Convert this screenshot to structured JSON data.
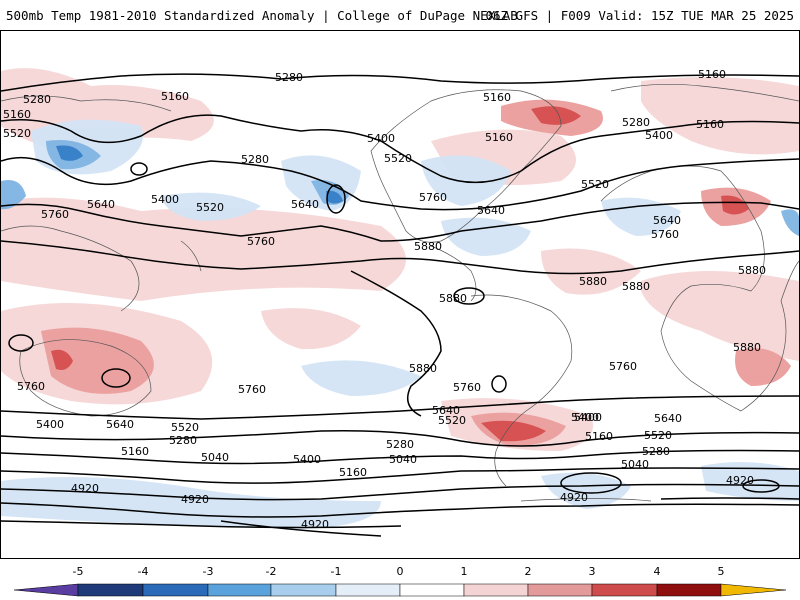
{
  "header": {
    "title_left": "500mb Temp 1981-2010 Standardized Anomaly | College of DuPage NEXLAB",
    "title_right": "06Z GFS | F009 Valid: 15Z TUE MAR 25 2025"
  },
  "map": {
    "contour_labels": [
      {
        "text": "5280",
        "kind": "height"
      },
      {
        "text": "5160",
        "kind": "height"
      },
      {
        "text": "5280",
        "kind": "height"
      },
      {
        "text": "5520",
        "kind": "height"
      },
      {
        "text": "5160",
        "kind": "height"
      },
      {
        "text": "5400",
        "kind": "height"
      },
      {
        "text": "5520",
        "kind": "height"
      },
      {
        "text": "5280",
        "kind": "height"
      },
      {
        "text": "5400",
        "kind": "height"
      },
      {
        "text": "5520",
        "kind": "height"
      },
      {
        "text": "5640",
        "kind": "height"
      },
      {
        "text": "5640",
        "kind": "height"
      },
      {
        "text": "5760",
        "kind": "height"
      },
      {
        "text": "5760",
        "kind": "height"
      },
      {
        "text": "5760",
        "kind": "height"
      },
      {
        "text": "5640",
        "kind": "height"
      },
      {
        "text": "5880",
        "kind": "height"
      },
      {
        "text": "5880",
        "kind": "height"
      },
      {
        "text": "5160",
        "kind": "height"
      },
      {
        "text": "5160",
        "kind": "height"
      },
      {
        "text": "5160",
        "kind": "height"
      },
      {
        "text": "5280",
        "kind": "height"
      },
      {
        "text": "5400",
        "kind": "height"
      },
      {
        "text": "5160",
        "kind": "height"
      },
      {
        "text": "5520",
        "kind": "height"
      },
      {
        "text": "5640",
        "kind": "height"
      },
      {
        "text": "5760",
        "kind": "height"
      },
      {
        "text": "5880",
        "kind": "height"
      },
      {
        "text": "5880",
        "kind": "height"
      },
      {
        "text": "5880",
        "kind": "height"
      },
      {
        "text": "5880",
        "kind": "height"
      },
      {
        "text": "5880",
        "kind": "height"
      },
      {
        "text": "5760",
        "kind": "height"
      },
      {
        "text": "5760",
        "kind": "height"
      },
      {
        "text": "5760",
        "kind": "height"
      },
      {
        "text": "5760",
        "kind": "height"
      },
      {
        "text": "5640",
        "kind": "height"
      },
      {
        "text": "5520",
        "kind": "height"
      },
      {
        "text": "5400",
        "kind": "height"
      },
      {
        "text": "5640",
        "kind": "height"
      },
      {
        "text": "5520",
        "kind": "height"
      },
      {
        "text": "5400",
        "kind": "height"
      },
      {
        "text": "5160",
        "kind": "height"
      },
      {
        "text": "5280",
        "kind": "height"
      },
      {
        "text": "5040",
        "kind": "height"
      },
      {
        "text": "5640",
        "kind": "height"
      },
      {
        "text": "5520",
        "kind": "height"
      },
      {
        "text": "5400",
        "kind": "height"
      },
      {
        "text": "5280",
        "kind": "height"
      },
      {
        "text": "5160",
        "kind": "height"
      },
      {
        "text": "5040",
        "kind": "height"
      },
      {
        "text": "4920",
        "kind": "height"
      },
      {
        "text": "4920",
        "kind": "height"
      },
      {
        "text": "4920",
        "kind": "height"
      },
      {
        "text": "4920",
        "kind": "height"
      },
      {
        "text": "5400",
        "kind": "height"
      },
      {
        "text": "5280",
        "kind": "height"
      },
      {
        "text": "5040",
        "kind": "height"
      },
      {
        "text": "5160",
        "kind": "height"
      }
    ]
  },
  "colorbar": {
    "ticks": [
      "-5",
      "-4",
      "-3",
      "-2",
      "-1",
      "0",
      "1",
      "2",
      "3",
      "4",
      "5"
    ],
    "colors": [
      "#3a2d8a",
      "#1a3a6e",
      "#2c5fa3",
      "#3d8fd0",
      "#8bbce6",
      "#cfe1f3",
      "#ffffff",
      "#ffffff",
      "#f4d4d4",
      "#e8a3a3",
      "#d86a6a",
      "#c02a2a",
      "#8a0a0a",
      "#ffcc33"
    ]
  },
  "colors": {
    "warm_light": "#f6d6d6",
    "warm_mid": "#ec9c9c",
    "warm_strong": "#d54a4a",
    "cool_light": "#d3e4f5",
    "cool_mid": "#7fb4e3",
    "cool_strong": "#2f7cc8",
    "contour": "#000000",
    "coast": "#555555"
  }
}
